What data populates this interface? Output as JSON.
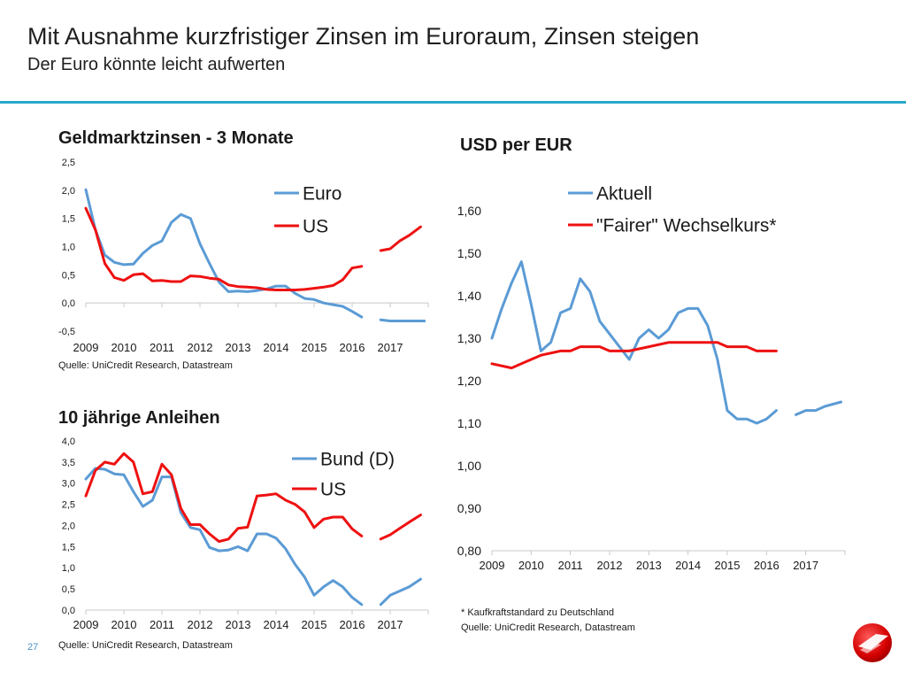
{
  "slide": {
    "title": "Mit Ausnahme kurzfristiger Zinsen im Euroraum, Zinsen steigen",
    "subtitle": "Der Euro könnte leicht aufwerten",
    "page_number": "27",
    "footnote": "* Kaufkraftstandard  zu Deutschland",
    "source": "Quelle: UniCredit  Research,  Datastream"
  },
  "colors": {
    "blue": "#5b9bd5",
    "red": "#ee1111",
    "accent": "#2aa9c9"
  },
  "chart_data": [
    {
      "type": "line",
      "title": "Geldmarktzinsen - 3 Monate",
      "xlabel": "",
      "ylabel": "",
      "x_range": [
        2009,
        2018.0
      ],
      "ylim": [
        -0.5,
        2.5
      ],
      "y_ticks": [
        "-0,5",
        "0,0",
        "0,5",
        "1,0",
        "1,5",
        "2,0",
        "2,5"
      ],
      "x_ticks": [
        "2009",
        "2010",
        "2011",
        "2012",
        "2013",
        "2014",
        "2015",
        "2016",
        "2017"
      ],
      "series": [
        {
          "name": "Euro",
          "color": "#5b9bd5",
          "segments": [
            [
              [
                2009.0,
                2.01
              ],
              [
                2009.25,
                1.3
              ],
              [
                2009.5,
                0.85
              ],
              [
                2009.75,
                0.72
              ],
              [
                2010.0,
                0.68
              ],
              [
                2010.25,
                0.69
              ],
              [
                2010.5,
                0.88
              ],
              [
                2010.75,
                1.02
              ],
              [
                2011.0,
                1.1
              ],
              [
                2011.25,
                1.43
              ],
              [
                2011.5,
                1.57
              ],
              [
                2011.75,
                1.5
              ],
              [
                2012.0,
                1.05
              ],
              [
                2012.25,
                0.7
              ],
              [
                2012.5,
                0.37
              ],
              [
                2012.75,
                0.2
              ],
              [
                2013.0,
                0.21
              ],
              [
                2013.25,
                0.2
              ],
              [
                2013.5,
                0.22
              ],
              [
                2013.75,
                0.25
              ],
              [
                2014.0,
                0.3
              ],
              [
                2014.25,
                0.3
              ],
              [
                2014.5,
                0.17
              ],
              [
                2014.75,
                0.08
              ],
              [
                2015.0,
                0.06
              ],
              [
                2015.25,
                0.0
              ],
              [
                2015.5,
                -0.03
              ],
              [
                2015.75,
                -0.06
              ],
              [
                2016.0,
                -0.15
              ],
              [
                2016.25,
                -0.25
              ]
            ],
            [
              [
                2016.75,
                -0.3
              ],
              [
                2017.0,
                -0.32
              ],
              [
                2017.5,
                -0.32
              ],
              [
                2017.9,
                -0.32
              ]
            ]
          ]
        },
        {
          "name": "US",
          "color": "#ee1111",
          "segments": [
            [
              [
                2009.0,
                1.68
              ],
              [
                2009.25,
                1.3
              ],
              [
                2009.5,
                0.7
              ],
              [
                2009.75,
                0.45
              ],
              [
                2010.0,
                0.4
              ],
              [
                2010.25,
                0.5
              ],
              [
                2010.5,
                0.52
              ],
              [
                2010.75,
                0.39
              ],
              [
                2011.0,
                0.4
              ],
              [
                2011.25,
                0.38
              ],
              [
                2011.5,
                0.38
              ],
              [
                2011.75,
                0.48
              ],
              [
                2012.0,
                0.47
              ],
              [
                2012.25,
                0.44
              ],
              [
                2012.5,
                0.42
              ],
              [
                2012.75,
                0.32
              ],
              [
                2013.0,
                0.29
              ],
              [
                2013.25,
                0.28
              ],
              [
                2013.5,
                0.27
              ],
              [
                2013.75,
                0.24
              ],
              [
                2014.0,
                0.23
              ],
              [
                2014.25,
                0.23
              ],
              [
                2014.5,
                0.23
              ],
              [
                2014.75,
                0.24
              ],
              [
                2015.0,
                0.26
              ],
              [
                2015.25,
                0.28
              ],
              [
                2015.5,
                0.31
              ],
              [
                2015.75,
                0.41
              ],
              [
                2016.0,
                0.62
              ],
              [
                2016.25,
                0.65
              ]
            ],
            [
              [
                2016.75,
                0.93
              ],
              [
                2017.0,
                0.96
              ],
              [
                2017.25,
                1.1
              ],
              [
                2017.5,
                1.2
              ],
              [
                2017.8,
                1.35
              ]
            ]
          ]
        }
      ],
      "legend": "top-right",
      "source": "Quelle: UniCredit  Research,  Datastream"
    },
    {
      "type": "line",
      "title": "10 jährige Anleihen",
      "xlabel": "",
      "ylabel": "",
      "x_range": [
        2009,
        2018.0
      ],
      "ylim": [
        0.0,
        4.0
      ],
      "y_ticks": [
        "0,0",
        "0,5",
        "1,0",
        "1,5",
        "2,0",
        "2,5",
        "3,0",
        "3,5",
        "4,0"
      ],
      "x_ticks": [
        "2009",
        "2010",
        "2011",
        "2012",
        "2013",
        "2014",
        "2015",
        "2016",
        "2017"
      ],
      "series": [
        {
          "name": "Bund (D)",
          "color": "#5b9bd5",
          "segments": [
            [
              [
                2009.0,
                3.1
              ],
              [
                2009.25,
                3.35
              ],
              [
                2009.5,
                3.33
              ],
              [
                2009.75,
                3.22
              ],
              [
                2010.0,
                3.2
              ],
              [
                2010.25,
                2.8
              ],
              [
                2010.5,
                2.45
              ],
              [
                2010.75,
                2.6
              ],
              [
                2011.0,
                3.15
              ],
              [
                2011.25,
                3.15
              ],
              [
                2011.5,
                2.3
              ],
              [
                2011.75,
                1.95
              ],
              [
                2012.0,
                1.9
              ],
              [
                2012.25,
                1.48
              ],
              [
                2012.5,
                1.4
              ],
              [
                2012.75,
                1.42
              ],
              [
                2013.0,
                1.5
              ],
              [
                2013.25,
                1.4
              ],
              [
                2013.5,
                1.8
              ],
              [
                2013.75,
                1.8
              ],
              [
                2014.0,
                1.7
              ],
              [
                2014.25,
                1.45
              ],
              [
                2014.5,
                1.08
              ],
              [
                2014.75,
                0.78
              ],
              [
                2015.0,
                0.35
              ],
              [
                2015.25,
                0.55
              ],
              [
                2015.5,
                0.7
              ],
              [
                2015.75,
                0.55
              ],
              [
                2016.0,
                0.3
              ],
              [
                2016.25,
                0.13
              ]
            ],
            [
              [
                2016.75,
                0.13
              ],
              [
                2017.0,
                0.35
              ],
              [
                2017.25,
                0.45
              ],
              [
                2017.5,
                0.55
              ],
              [
                2017.8,
                0.73
              ]
            ]
          ]
        },
        {
          "name": "US",
          "color": "#ee1111",
          "segments": [
            [
              [
                2009.0,
                2.7
              ],
              [
                2009.25,
                3.3
              ],
              [
                2009.5,
                3.5
              ],
              [
                2009.75,
                3.45
              ],
              [
                2010.0,
                3.7
              ],
              [
                2010.25,
                3.5
              ],
              [
                2010.5,
                2.75
              ],
              [
                2010.75,
                2.8
              ],
              [
                2011.0,
                3.45
              ],
              [
                2011.25,
                3.2
              ],
              [
                2011.5,
                2.4
              ],
              [
                2011.75,
                2.02
              ],
              [
                2012.0,
                2.02
              ],
              [
                2012.25,
                1.8
              ],
              [
                2012.5,
                1.62
              ],
              [
                2012.75,
                1.68
              ],
              [
                2013.0,
                1.93
              ],
              [
                2013.25,
                1.96
              ],
              [
                2013.5,
                2.7
              ],
              [
                2013.75,
                2.72
              ],
              [
                2014.0,
                2.75
              ],
              [
                2014.25,
                2.6
              ],
              [
                2014.5,
                2.5
              ],
              [
                2014.75,
                2.32
              ],
              [
                2015.0,
                1.95
              ],
              [
                2015.25,
                2.15
              ],
              [
                2015.5,
                2.2
              ],
              [
                2015.75,
                2.2
              ],
              [
                2016.0,
                1.92
              ],
              [
                2016.25,
                1.75
              ]
            ],
            [
              [
                2016.75,
                1.68
              ],
              [
                2017.0,
                1.78
              ],
              [
                2017.25,
                1.93
              ],
              [
                2017.5,
                2.08
              ],
              [
                2017.8,
                2.25
              ]
            ]
          ]
        }
      ],
      "legend": "top-right",
      "source": "Quelle: UniCredit  Research,  Datastream"
    },
    {
      "type": "line",
      "title": "USD per EUR",
      "xlabel": "",
      "ylabel": "",
      "x_range": [
        2009,
        2018.0
      ],
      "ylim": [
        0.8,
        1.6
      ],
      "y_ticks": [
        "0,80",
        "0,90",
        "1,00",
        "1,10",
        "1,20",
        "1,30",
        "1,40",
        "1,50",
        "1,60"
      ],
      "x_ticks": [
        "2009",
        "2010",
        "2011",
        "2012",
        "2013",
        "2014",
        "2015",
        "2016",
        "2017"
      ],
      "series": [
        {
          "name": "Aktuell",
          "color": "#5b9bd5",
          "segments": [
            [
              [
                2009.0,
                1.3
              ],
              [
                2009.25,
                1.37
              ],
              [
                2009.5,
                1.43
              ],
              [
                2009.75,
                1.48
              ],
              [
                2010.0,
                1.38
              ],
              [
                2010.25,
                1.27
              ],
              [
                2010.5,
                1.29
              ],
              [
                2010.75,
                1.36
              ],
              [
                2011.0,
                1.37
              ],
              [
                2011.25,
                1.44
              ],
              [
                2011.5,
                1.41
              ],
              [
                2011.75,
                1.34
              ],
              [
                2012.0,
                1.31
              ],
              [
                2012.25,
                1.28
              ],
              [
                2012.5,
                1.25
              ],
              [
                2012.75,
                1.3
              ],
              [
                2013.0,
                1.32
              ],
              [
                2013.25,
                1.3
              ],
              [
                2013.5,
                1.32
              ],
              [
                2013.75,
                1.36
              ],
              [
                2014.0,
                1.37
              ],
              [
                2014.25,
                1.37
              ],
              [
                2014.5,
                1.33
              ],
              [
                2014.75,
                1.25
              ],
              [
                2015.0,
                1.13
              ],
              [
                2015.25,
                1.11
              ],
              [
                2015.5,
                1.11
              ],
              [
                2015.75,
                1.1
              ],
              [
                2016.0,
                1.11
              ],
              [
                2016.25,
                1.13
              ]
            ],
            [
              [
                2016.75,
                1.12
              ],
              [
                2017.0,
                1.13
              ],
              [
                2017.25,
                1.13
              ],
              [
                2017.5,
                1.14
              ],
              [
                2017.9,
                1.15
              ]
            ]
          ]
        },
        {
          "name": "\"Fairer\" Wechselkurs*",
          "color": "#ee1111",
          "segments": [
            [
              [
                2009.0,
                1.24
              ],
              [
                2009.5,
                1.23
              ],
              [
                2009.75,
                1.24
              ],
              [
                2010.0,
                1.25
              ],
              [
                2010.25,
                1.26
              ],
              [
                2010.75,
                1.27
              ],
              [
                2011.0,
                1.27
              ],
              [
                2011.25,
                1.28
              ],
              [
                2011.75,
                1.28
              ],
              [
                2012.0,
                1.27
              ],
              [
                2012.5,
                1.27
              ],
              [
                2013.0,
                1.28
              ],
              [
                2013.5,
                1.29
              ],
              [
                2014.0,
                1.29
              ],
              [
                2014.25,
                1.29
              ],
              [
                2014.5,
                1.29
              ],
              [
                2014.75,
                1.29
              ],
              [
                2015.0,
                1.28
              ],
              [
                2015.5,
                1.28
              ],
              [
                2015.75,
                1.27
              ],
              [
                2016.25,
                1.27
              ]
            ]
          ]
        }
      ],
      "legend": "top-left",
      "footnote": "* Kaufkraftstandard  zu Deutschland",
      "source": "Quelle: UniCredit  Research,  Datastream"
    }
  ]
}
